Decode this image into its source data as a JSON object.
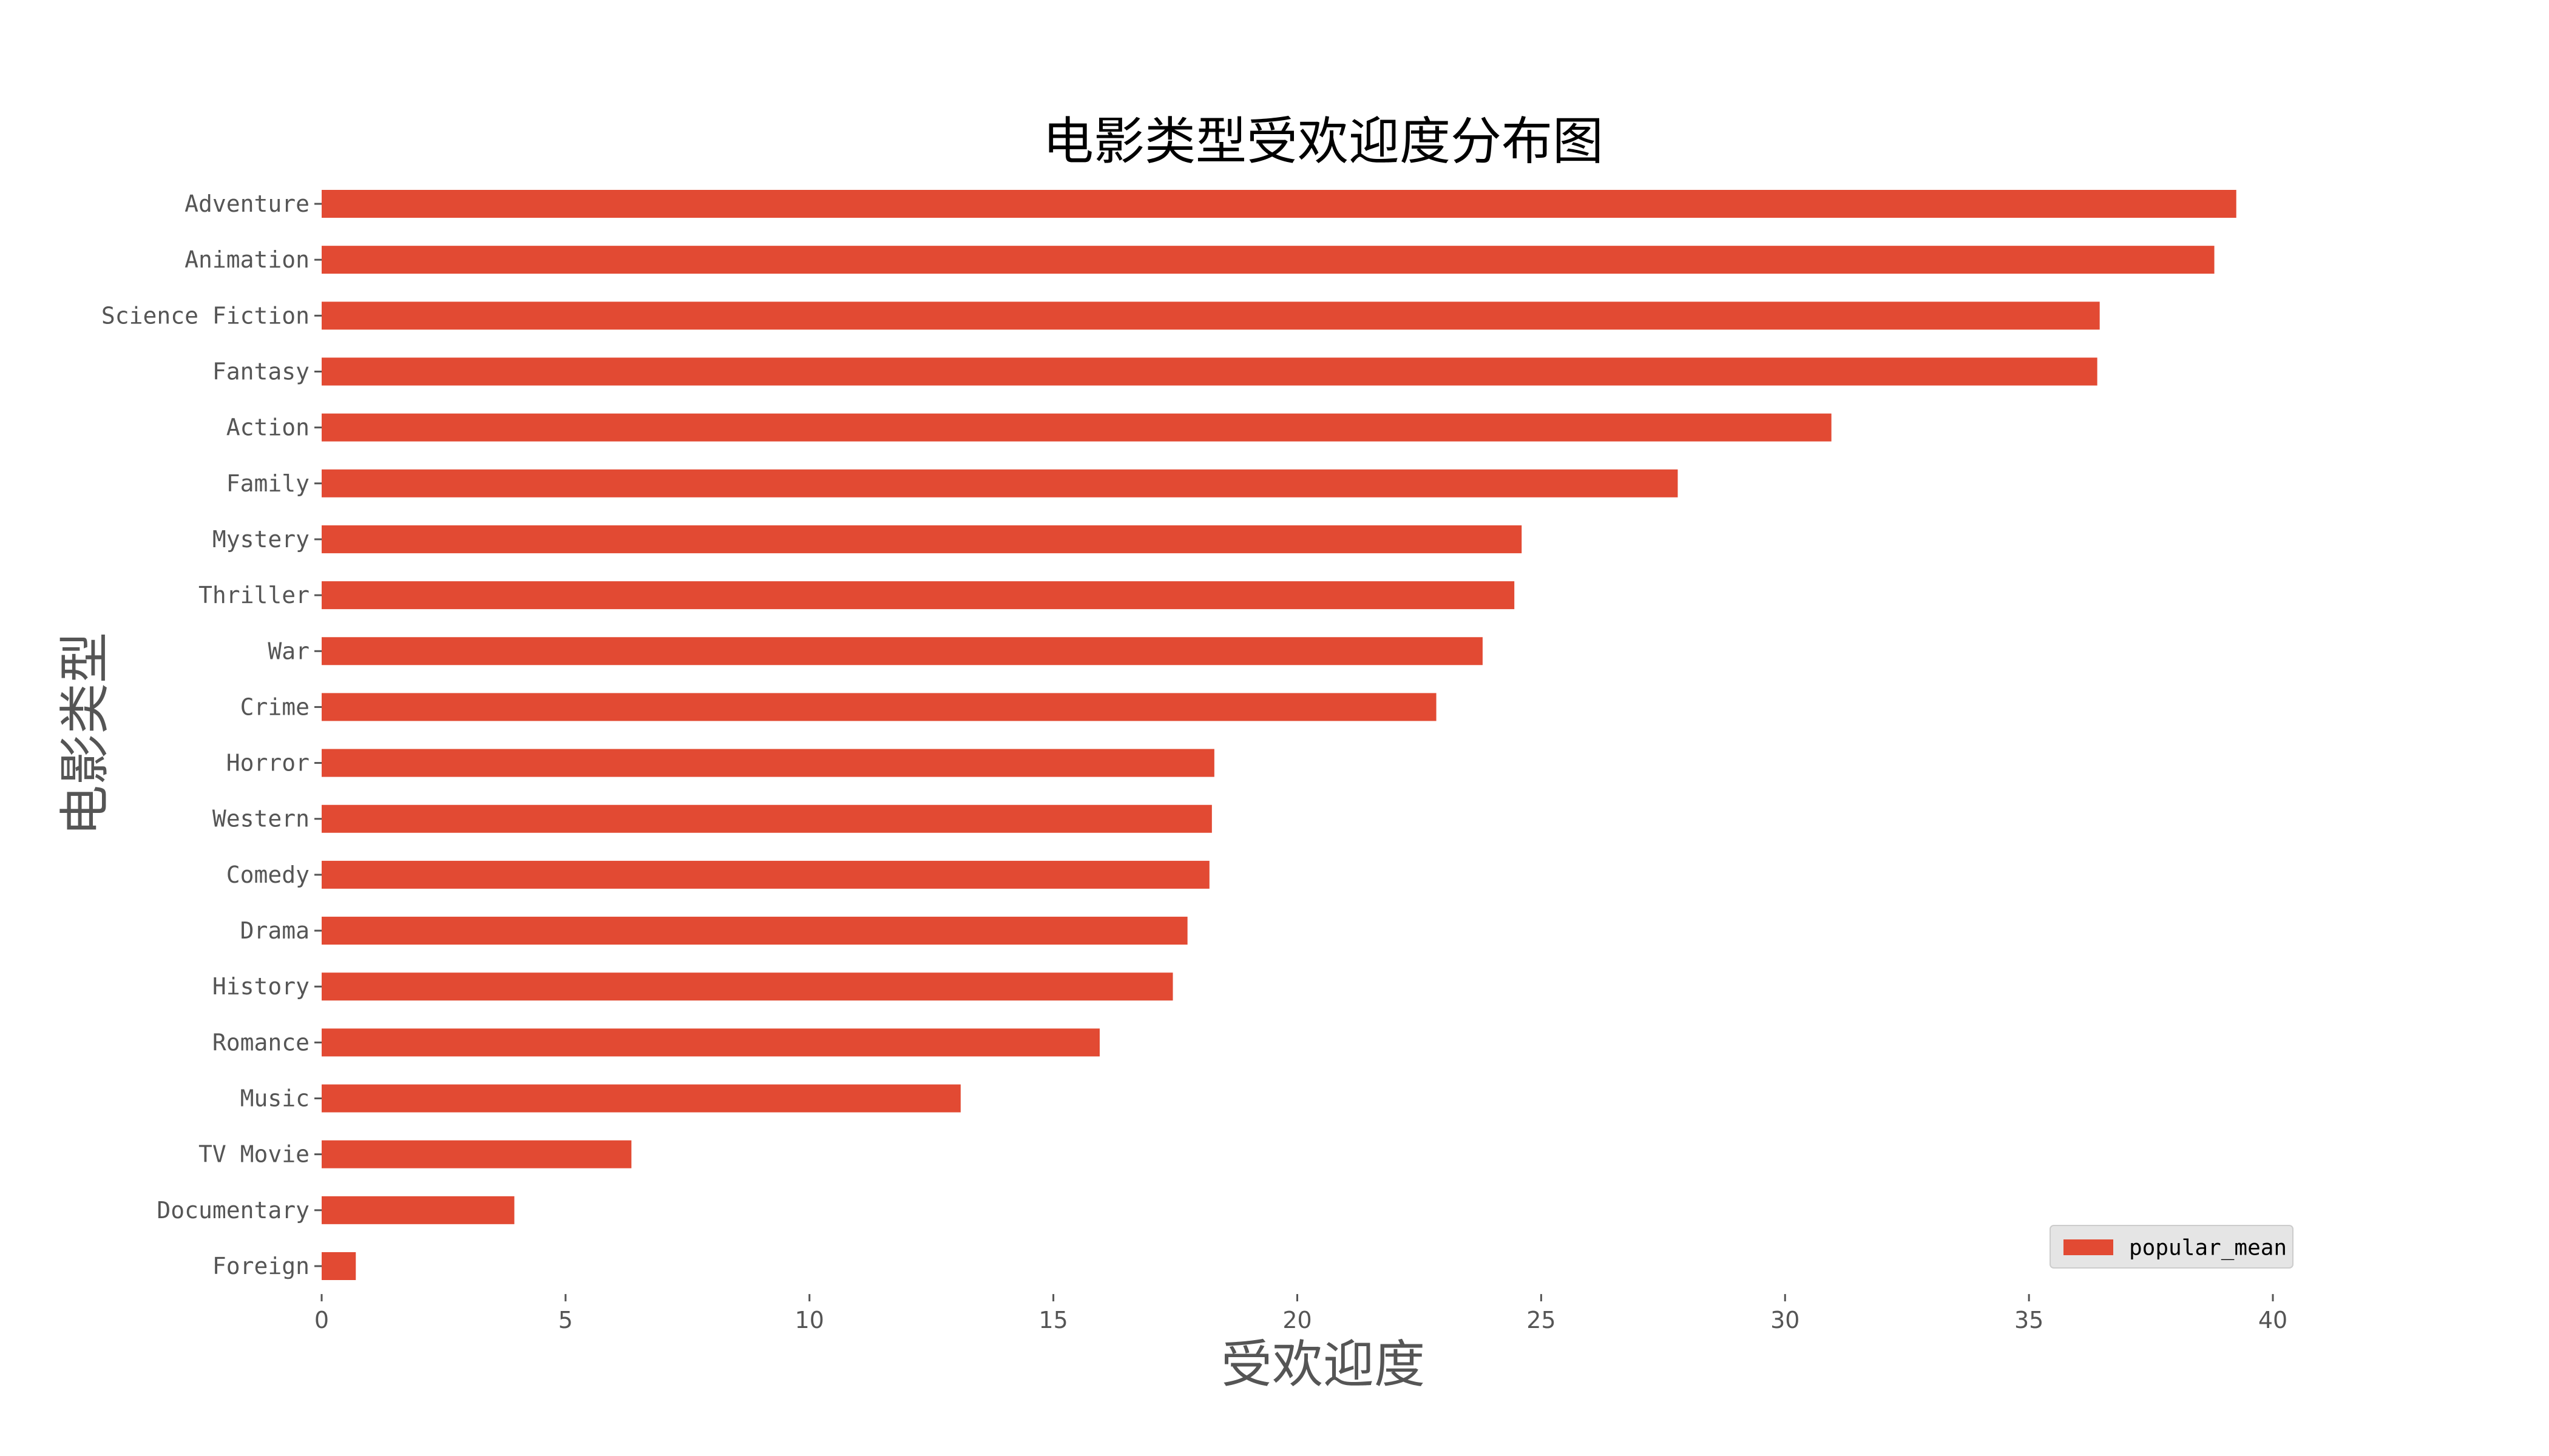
{
  "chart_data": {
    "type": "bar",
    "orientation": "horizontal",
    "title": "电影类型受欢迎度分布图",
    "xlabel": "受欢迎度",
    "ylabel": "电影类型",
    "categories": [
      "Adventure",
      "Animation",
      "Science Fiction",
      "Fantasy",
      "Action",
      "Family",
      "Mystery",
      "Thriller",
      "War",
      "Crime",
      "Horror",
      "Western",
      "Comedy",
      "Drama",
      "History",
      "Romance",
      "Music",
      "TV Movie",
      "Documentary",
      "Foreign"
    ],
    "series": [
      {
        "name": "popular_mean",
        "color": "#E24A33",
        "values": [
          39.25,
          38.8,
          36.45,
          36.4,
          30.95,
          27.8,
          24.6,
          24.45,
          23.8,
          22.85,
          18.3,
          18.25,
          18.2,
          17.75,
          17.45,
          15.95,
          13.1,
          6.35,
          3.95,
          0.7
        ]
      }
    ],
    "xlim": [
      0,
      40
    ],
    "xticks": [
      "0",
      "5",
      "10",
      "15",
      "20",
      "25",
      "30",
      "35",
      "40"
    ],
    "grid": false,
    "legend_position": "bottom-right",
    "legend_background": "#E5E5E5"
  }
}
